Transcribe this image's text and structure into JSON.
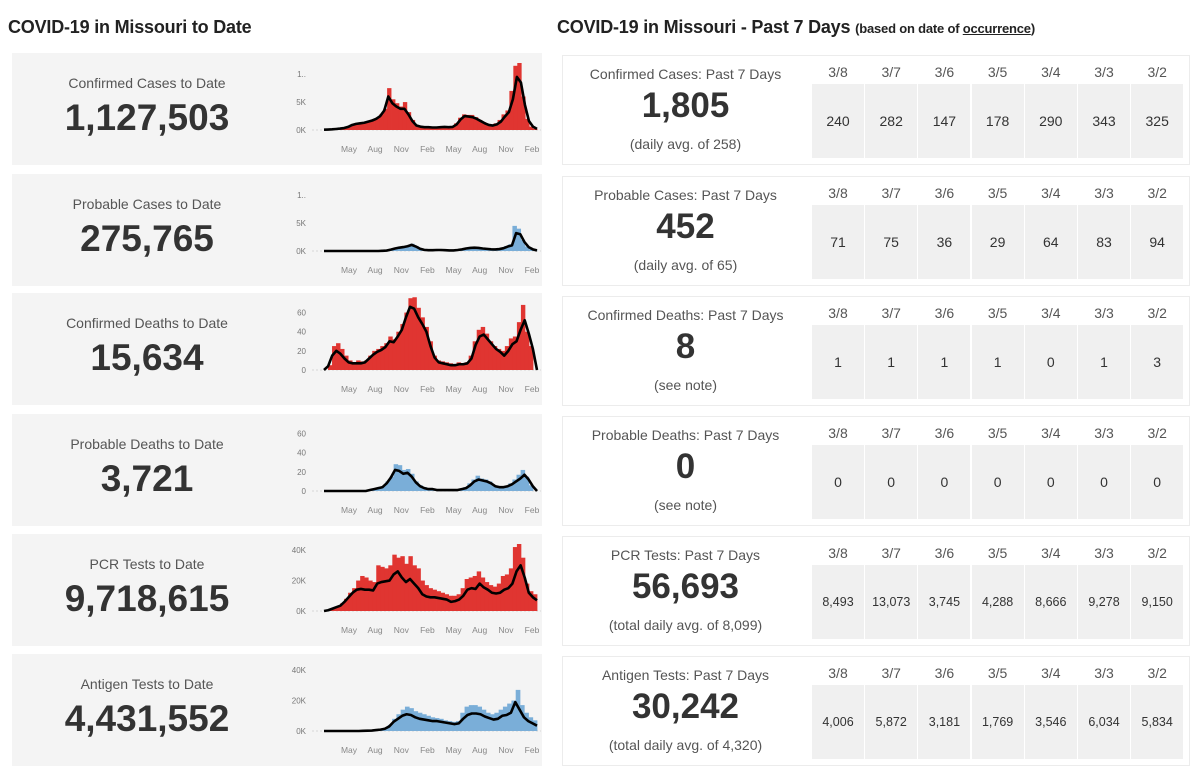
{
  "headers": {
    "left_title": "COVID-19 in Missouri to Date",
    "right_title": "COVID-19 in Missouri - Past 7 Days",
    "right_subtitle_prefix": "(based on date of ",
    "right_subtitle_link": "occurrence",
    "right_subtitle_suffix": ")"
  },
  "colors": {
    "confirmed_bar": "#e03531",
    "probable_bar": "#7aaed8",
    "avg_line": "#000000",
    "left_card_bg": "#f4f4f4",
    "day_cell_bg": "#f0f0f0"
  },
  "to_date": [
    {
      "label": "Confirmed Cases to Date",
      "value": "1,127,503"
    },
    {
      "label": "Probable Cases to Date",
      "value": "275,765"
    },
    {
      "label": "Confirmed Deaths to Date",
      "value": "15,634"
    },
    {
      "label": "Probable Deaths to Date",
      "value": "3,721"
    },
    {
      "label": "PCR Tests to Date",
      "value": "9,718,615"
    },
    {
      "label": "Antigen Tests to Date",
      "value": "4,431,552"
    }
  ],
  "past7": [
    {
      "label": "Confirmed Cases: Past 7 Days",
      "value": "1,805",
      "note": "(daily avg. of 258)",
      "days": [
        "3/8",
        "3/7",
        "3/6",
        "3/5",
        "3/4",
        "3/3",
        "3/2"
      ],
      "values": [
        "240",
        "282",
        "147",
        "178",
        "290",
        "343",
        "325"
      ]
    },
    {
      "label": "Probable Cases: Past 7 Days",
      "value": "452",
      "note": "(daily avg. of 65)",
      "days": [
        "3/8",
        "3/7",
        "3/6",
        "3/5",
        "3/4",
        "3/3",
        "3/2"
      ],
      "values": [
        "71",
        "75",
        "36",
        "29",
        "64",
        "83",
        "94"
      ]
    },
    {
      "label": "Confirmed Deaths: Past 7 Days",
      "value": "8",
      "note": "(see note)",
      "days": [
        "3/8",
        "3/7",
        "3/6",
        "3/5",
        "3/4",
        "3/3",
        "3/2"
      ],
      "values": [
        "1",
        "1",
        "1",
        "1",
        "0",
        "1",
        "3"
      ]
    },
    {
      "label": "Probable Deaths: Past 7 Days",
      "value": "0",
      "note": "(see note)",
      "days": [
        "3/8",
        "3/7",
        "3/6",
        "3/5",
        "3/4",
        "3/3",
        "3/2"
      ],
      "values": [
        "0",
        "0",
        "0",
        "0",
        "0",
        "0",
        "0"
      ]
    },
    {
      "label": "PCR Tests: Past 7 Days",
      "value": "56,693",
      "note": "(total daily avg. of 8,099)",
      "days": [
        "3/8",
        "3/7",
        "3/6",
        "3/5",
        "3/4",
        "3/3",
        "3/2"
      ],
      "values": [
        "8,493",
        "13,073",
        "3,745",
        "4,288",
        "8,666",
        "9,278",
        "9,150"
      ]
    },
    {
      "label": "Antigen Tests: Past 7 Days",
      "value": "30,242",
      "note": "(total daily avg. of 4,320)",
      "days": [
        "3/8",
        "3/7",
        "3/6",
        "3/5",
        "3/4",
        "3/3",
        "3/2"
      ],
      "values": [
        "4,006",
        "5,872",
        "3,181",
        "1,769",
        "3,546",
        "6,034",
        "5,834"
      ]
    }
  ],
  "chart_data": [
    {
      "type": "bar",
      "title": "Confirmed Cases (daily, with 7-day avg)",
      "series_color": "confirmed",
      "yticks": [
        "0K",
        "5K",
        "1.."
      ],
      "ytick_values": [
        0,
        5000,
        10000
      ],
      "ylim": [
        0,
        12000
      ],
      "x_month_ticks": [
        "May",
        "Aug",
        "Nov",
        "Feb",
        "May",
        "Aug",
        "Nov",
        "Feb"
      ],
      "bars": [
        50,
        100,
        150,
        200,
        300,
        400,
        600,
        1000,
        1200,
        1300,
        1400,
        1600,
        1900,
        2200,
        2800,
        3800,
        7500,
        5500,
        4800,
        4200,
        5000,
        3200,
        1800,
        900,
        600,
        500,
        500,
        500,
        500,
        600,
        700,
        500,
        600,
        1200,
        2200,
        2800,
        2700,
        2700,
        2300,
        1800,
        1400,
        1000,
        900,
        1200,
        1800,
        2800,
        3500,
        7000,
        11500,
        12000,
        6000,
        2000,
        600,
        200
      ],
      "avg": [
        50,
        80,
        120,
        180,
        250,
        350,
        550,
        900,
        1100,
        1200,
        1300,
        1500,
        1700,
        2000,
        2500,
        3500,
        6000,
        4800,
        4200,
        3800,
        3800,
        2800,
        1600,
        800,
        600,
        500,
        500,
        450,
        450,
        500,
        550,
        500,
        550,
        1000,
        1900,
        2500,
        2400,
        2300,
        2000,
        1600,
        1200,
        900,
        800,
        1000,
        1500,
        2400,
        3200,
        5500,
        9500,
        8500,
        4500,
        1600,
        600,
        200
      ]
    },
    {
      "type": "bar",
      "title": "Probable Cases (daily, with 7-day avg)",
      "series_color": "probable",
      "yticks": [
        "0K",
        "5K",
        "1.."
      ],
      "ytick_values": [
        0,
        5000,
        10000
      ],
      "ylim": [
        0,
        12000
      ],
      "x_month_ticks": [
        "May",
        "Aug",
        "Nov",
        "Feb",
        "May",
        "Aug",
        "Nov",
        "Feb"
      ],
      "bars": [
        0,
        0,
        0,
        0,
        0,
        0,
        0,
        0,
        0,
        0,
        0,
        0,
        0,
        0,
        50,
        100,
        300,
        500,
        700,
        800,
        1000,
        1300,
        900,
        400,
        200,
        150,
        150,
        200,
        200,
        150,
        100,
        100,
        200,
        300,
        500,
        600,
        700,
        600,
        500,
        400,
        300,
        300,
        400,
        600,
        900,
        1200,
        4500,
        4000,
        2000,
        800,
        300,
        100
      ],
      "avg": [
        0,
        0,
        0,
        0,
        0,
        0,
        0,
        0,
        0,
        0,
        0,
        0,
        0,
        0,
        40,
        80,
        250,
        450,
        600,
        700,
        850,
        1100,
        800,
        400,
        200,
        150,
        150,
        180,
        180,
        150,
        100,
        100,
        180,
        280,
        450,
        550,
        600,
        550,
        450,
        380,
        300,
        280,
        350,
        500,
        800,
        1000,
        3200,
        3000,
        1600,
        700,
        300,
        100
      ]
    },
    {
      "type": "bar",
      "title": "Confirmed Deaths (daily, with 7-day avg)",
      "series_color": "confirmed",
      "yticks": [
        "0",
        "20",
        "40",
        "60"
      ],
      "ytick_values": [
        0,
        20,
        40,
        60
      ],
      "ylim": [
        0,
        70
      ],
      "x_month_ticks": [
        "May",
        "Aug",
        "Nov",
        "Feb",
        "May",
        "Aug",
        "Nov",
        "Feb"
      ],
      "bars": [
        0,
        5,
        25,
        28,
        22,
        15,
        10,
        8,
        10,
        9,
        10,
        15,
        20,
        22,
        25,
        28,
        35,
        32,
        40,
        48,
        60,
        75,
        76,
        65,
        55,
        45,
        30,
        15,
        10,
        9,
        8,
        7,
        6,
        8,
        7,
        8,
        15,
        30,
        42,
        45,
        38,
        30,
        25,
        22,
        20,
        25,
        33,
        35,
        50,
        68,
        40,
        25,
        0
      ],
      "avg": [
        0,
        4,
        15,
        20,
        17,
        12,
        8,
        7,
        7,
        7,
        8,
        12,
        16,
        19,
        21,
        24,
        30,
        29,
        35,
        42,
        55,
        66,
        64,
        55,
        48,
        40,
        25,
        13,
        8,
        7,
        6,
        5,
        5,
        6,
        6,
        7,
        12,
        26,
        35,
        37,
        32,
        27,
        22,
        19,
        15,
        20,
        27,
        30,
        42,
        52,
        38,
        22,
        0
      ]
    },
    {
      "type": "bar",
      "title": "Probable Deaths (daily, with 7-day avg)",
      "series_color": "probable",
      "yticks": [
        "0",
        "20",
        "40",
        "60"
      ],
      "ytick_values": [
        0,
        20,
        40,
        60
      ],
      "ylim": [
        0,
        70
      ],
      "x_month_ticks": [
        "May",
        "Aug",
        "Nov",
        "Feb",
        "May",
        "Aug",
        "Nov",
        "Feb"
      ],
      "bars": [
        0,
        0,
        0,
        0,
        0,
        0,
        0,
        0,
        0,
        0,
        0,
        1,
        2,
        3,
        5,
        10,
        15,
        28,
        27,
        22,
        23,
        18,
        10,
        6,
        4,
        3,
        2,
        1,
        1,
        1,
        1,
        1,
        1,
        2,
        4,
        8,
        12,
        16,
        13,
        12,
        10,
        6,
        5,
        4,
        5,
        8,
        12,
        17,
        22,
        15,
        6,
        0
      ],
      "avg": [
        0,
        0,
        0,
        0,
        0,
        0,
        0,
        0,
        0,
        0,
        0,
        1,
        2,
        3,
        4,
        8,
        14,
        22,
        21,
        18,
        19,
        15,
        9,
        5,
        3,
        2,
        2,
        1,
        1,
        1,
        1,
        1,
        1,
        2,
        3,
        6,
        10,
        12,
        11,
        10,
        8,
        5,
        4,
        4,
        5,
        7,
        10,
        13,
        17,
        12,
        5,
        0
      ]
    },
    {
      "type": "bar",
      "title": "PCR Tests (daily, with 7-day avg)",
      "series_color": "confirmed",
      "yticks": [
        "0K",
        "20K",
        "40K"
      ],
      "ytick_values": [
        0,
        20000,
        40000
      ],
      "ylim": [
        0,
        44000
      ],
      "x_month_ticks": [
        "May",
        "Aug",
        "Nov",
        "Feb",
        "May",
        "Aug",
        "Nov",
        "Feb"
      ],
      "bars": [
        0,
        1000,
        2000,
        3000,
        5000,
        8000,
        12000,
        15000,
        20000,
        23000,
        22000,
        20000,
        19000,
        30000,
        29000,
        28000,
        30000,
        37000,
        35000,
        36000,
        31000,
        36000,
        30000,
        28000,
        20000,
        17000,
        15000,
        14000,
        13000,
        12000,
        11000,
        10000,
        10000,
        11000,
        15000,
        21000,
        22000,
        23000,
        26000,
        22000,
        19000,
        17000,
        16000,
        18000,
        23000,
        24000,
        28000,
        42000,
        44000,
        35000,
        18000,
        13000,
        11000
      ],
      "avg": [
        0,
        500,
        1500,
        2500,
        3500,
        6000,
        9000,
        12000,
        14000,
        14500,
        14000,
        14000,
        13500,
        18000,
        19000,
        19500,
        20000,
        24000,
        26000,
        22000,
        19000,
        21000,
        18000,
        15000,
        11000,
        9500,
        9000,
        9000,
        8500,
        8000,
        7500,
        6000,
        6500,
        7500,
        10000,
        14000,
        15000,
        14500,
        18000,
        15500,
        14000,
        12000,
        11500,
        12000,
        14000,
        15000,
        18000,
        26000,
        30000,
        22000,
        12000,
        9000,
        7000
      ]
    },
    {
      "type": "bar",
      "title": "Antigen Tests (daily, with 7-day avg)",
      "series_color": "probable",
      "yticks": [
        "0K",
        "20K",
        "40K"
      ],
      "ytick_values": [
        0,
        20000,
        40000
      ],
      "ylim": [
        0,
        44000
      ],
      "x_month_ticks": [
        "May",
        "Aug",
        "Nov",
        "Feb",
        "May",
        "Aug",
        "Nov",
        "Feb"
      ],
      "bars": [
        0,
        0,
        0,
        0,
        0,
        0,
        0,
        0,
        0,
        100,
        200,
        400,
        700,
        1000,
        2000,
        4000,
        8000,
        11000,
        14000,
        16000,
        15000,
        13000,
        12000,
        11000,
        10000,
        9000,
        8500,
        8000,
        7000,
        6500,
        6000,
        6500,
        12000,
        16000,
        17000,
        17000,
        16000,
        14000,
        12000,
        11000,
        12000,
        14000,
        16000,
        18000,
        20000,
        27000,
        17000,
        12000,
        9000,
        7000
      ],
      "avg": [
        0,
        0,
        0,
        0,
        0,
        0,
        0,
        0,
        0,
        100,
        200,
        300,
        600,
        900,
        1500,
        3000,
        6000,
        8000,
        10000,
        11000,
        10500,
        9000,
        8000,
        7500,
        7000,
        6500,
        6500,
        6000,
        5500,
        5000,
        4500,
        5000,
        8000,
        10500,
        11500,
        11500,
        11000,
        9500,
        8500,
        7500,
        8000,
        10000,
        10500,
        12000,
        19000,
        14000,
        9000,
        6500,
        5000,
        3500
      ]
    }
  ]
}
